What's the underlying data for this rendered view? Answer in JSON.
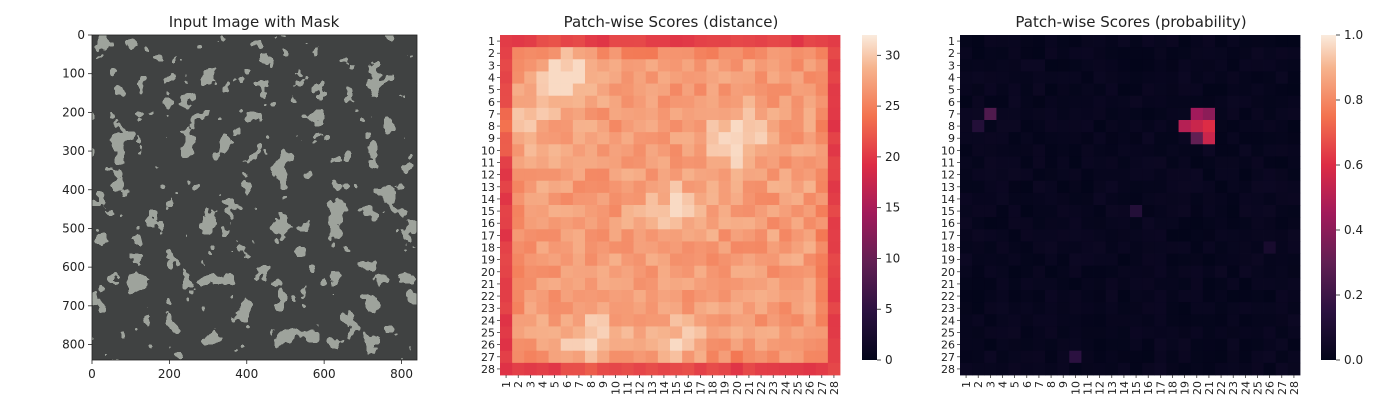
{
  "chart_data": [
    {
      "type": "image",
      "title": "Input Image with Mask",
      "xticks": [
        0,
        200,
        400,
        600,
        800
      ],
      "yticks": [
        0,
        100,
        200,
        300,
        400,
        500,
        600,
        700,
        800
      ],
      "xlim": [
        0,
        840
      ],
      "ylim": [
        0,
        840
      ]
    },
    {
      "type": "heatmap",
      "title": "Patch-wise Scores (distance)",
      "rows": 28,
      "cols": 28,
      "tick_labels": [
        "1",
        "2",
        "3",
        "4",
        "5",
        "6",
        "7",
        "8",
        "9",
        "10",
        "11",
        "12",
        "13",
        "14",
        "15",
        "16",
        "17",
        "18",
        "19",
        "20",
        "21",
        "22",
        "23",
        "24",
        "25",
        "26",
        "27",
        "28"
      ],
      "colorbar_range": [
        0,
        32
      ],
      "colorbar_ticks": [
        0,
        5,
        10,
        15,
        20,
        25,
        30
      ],
      "value_range_observed": [
        19,
        31
      ],
      "high_regions": [
        {
          "row": 4,
          "col": 6,
          "value": 31
        },
        {
          "row": 8,
          "col": 2,
          "value": 30
        },
        {
          "row": 9,
          "col": 20,
          "value": 31
        },
        {
          "row": 15,
          "col": 15,
          "value": 29
        },
        {
          "row": 26,
          "col": 8,
          "value": 30
        },
        {
          "row": 26,
          "col": 15,
          "value": 29
        }
      ],
      "colormap": "rocket"
    },
    {
      "type": "heatmap",
      "title": "Patch-wise Scores (probability)",
      "rows": 28,
      "cols": 28,
      "tick_labels": [
        "1",
        "2",
        "3",
        "4",
        "5",
        "6",
        "7",
        "8",
        "9",
        "10",
        "11",
        "12",
        "13",
        "14",
        "15",
        "16",
        "17",
        "18",
        "19",
        "20",
        "21",
        "22",
        "23",
        "24",
        "25",
        "26",
        "27",
        "28"
      ],
      "colorbar_range": [
        0,
        1
      ],
      "colorbar_ticks": [
        "0.0",
        "0.2",
        "0.4",
        "0.6",
        "0.8",
        "1.0"
      ],
      "hot_cells": [
        {
          "row": 7,
          "col": 3,
          "value": 0.25
        },
        {
          "row": 7,
          "col": 20,
          "value": 0.45
        },
        {
          "row": 7,
          "col": 21,
          "value": 0.4
        },
        {
          "row": 8,
          "col": 19,
          "value": 0.5
        },
        {
          "row": 8,
          "col": 20,
          "value": 0.55
        },
        {
          "row": 8,
          "col": 21,
          "value": 0.6
        },
        {
          "row": 9,
          "col": 20,
          "value": 0.3
        },
        {
          "row": 9,
          "col": 21,
          "value": 0.55
        },
        {
          "row": 8,
          "col": 2,
          "value": 0.12
        },
        {
          "row": 15,
          "col": 15,
          "value": 0.12
        },
        {
          "row": 27,
          "col": 10,
          "value": 0.15
        },
        {
          "row": 18,
          "col": 26,
          "value": 0.08
        }
      ],
      "colormap": "rocket"
    }
  ]
}
